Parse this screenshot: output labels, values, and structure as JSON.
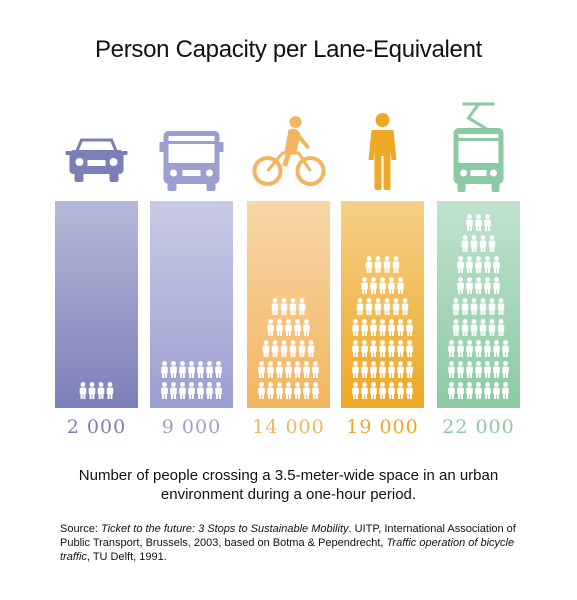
{
  "title": "Person Capacity per Lane-Equivalent",
  "chart_data": {
    "type": "bar",
    "title": "Person Capacity per Lane-Equivalent",
    "categories": [
      "car",
      "bus",
      "bicycle",
      "pedestrian",
      "tram"
    ],
    "values": [
      2000,
      9000,
      14000,
      19000,
      22000
    ],
    "value_labels": [
      "2 000",
      "9 000",
      "14 000",
      "19 000",
      "22 000"
    ],
    "person_icon_rows": [
      1,
      2,
      5,
      7,
      9
    ],
    "colors": [
      "#7b7fb8",
      "#9b9fcf",
      "#f2b560",
      "#eda826",
      "#8ccaa3"
    ]
  },
  "caption": "Number of people crossing a 3.5-meter-wide space in an urban environment during a one-hour period.",
  "source": {
    "prefix": "Source: ",
    "title": "Ticket to the future: 3 Stops to Sustainable Mobility",
    "middle": ". UITP, International Association of Public Transport, Brussels, 2003, based on Botma & Pependrecht, ",
    "title2": "Traffic operation of bicycle traffic",
    "suffix": ", TU Delft, 1991."
  },
  "icons": [
    "car-icon",
    "bus-icon",
    "bicycle-icon",
    "pedestrian-icon",
    "tram-icon"
  ]
}
